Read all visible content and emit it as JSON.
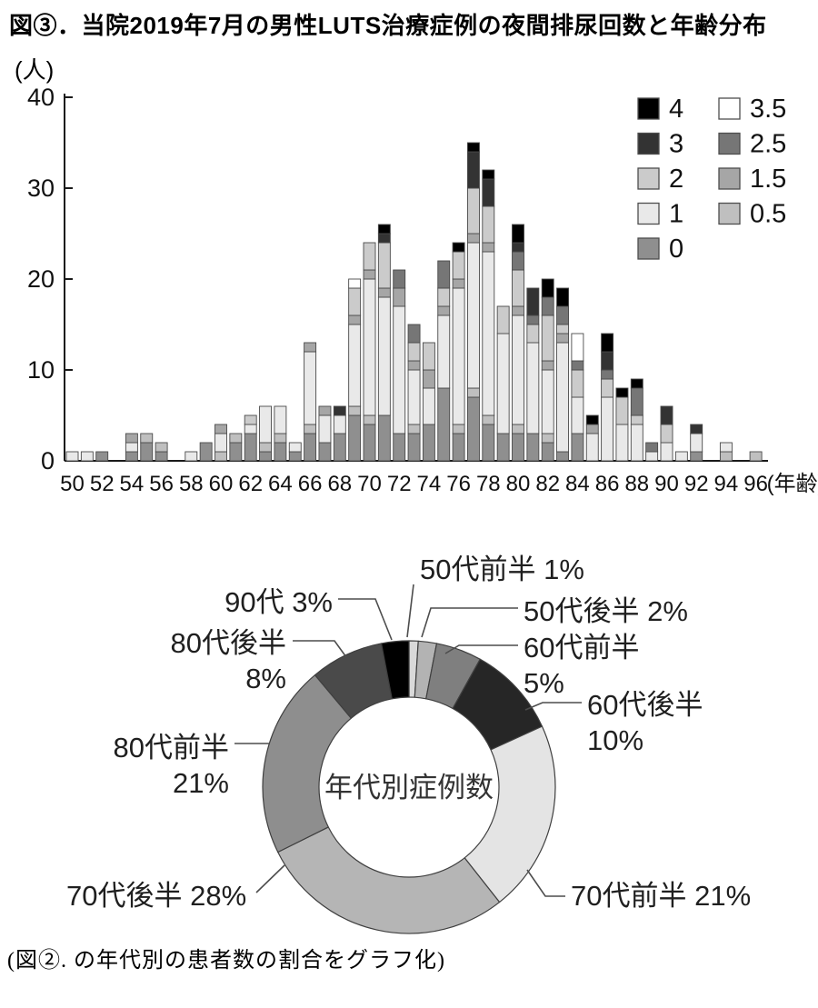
{
  "title": "図③．当院2019年7月の男性LUTS治療症例の夜間排尿回数と年齢分布",
  "caption": "(図②. の年代別の患者数の割合をグラフ化)",
  "chart_data": [
    {
      "type": "bar",
      "stacked": true,
      "description": "Stacked bar chart: number of male LUTS patients (y, 人) by age (x, 歳) stacked by nightly urination frequency (0–4 in 0.5 steps)",
      "y_axis_unit": "(人)",
      "x_axis_label_suffix": "(年齢)",
      "ylim": [
        0,
        40
      ],
      "y_tick_labels": [
        "0",
        "10",
        "20",
        "30",
        "40"
      ],
      "x_tick_labels": [
        "50",
        "52",
        "54",
        "56",
        "58",
        "60",
        "62",
        "64",
        "66",
        "68",
        "70",
        "72",
        "74",
        "76",
        "78",
        "80",
        "82",
        "84",
        "86",
        "88",
        "90",
        "92",
        "94",
        "96"
      ],
      "series_order": [
        "0",
        "0.5",
        "1",
        "1.5",
        "2",
        "2.5",
        "3",
        "3.5",
        "4"
      ],
      "series_colors": {
        "0": "#8f8f8f",
        "0.5": "#bfbfbf",
        "1": "#e9e9e9",
        "1.5": "#a6a6a6",
        "2": "#cbcbcb",
        "2.5": "#767676",
        "3": "#333333",
        "3.5": "#ffffff",
        "4": "#000000"
      },
      "legend": {
        "left_column": [
          {
            "label": "4",
            "color": "#000000"
          },
          {
            "label": "3",
            "color": "#333333"
          },
          {
            "label": "2",
            "color": "#cbcbcb"
          },
          {
            "label": "1",
            "color": "#e9e9e9"
          },
          {
            "label": "0",
            "color": "#8f8f8f"
          }
        ],
        "right_column": [
          {
            "label": "3.5",
            "color": "#ffffff"
          },
          {
            "label": "2.5",
            "color": "#767676"
          },
          {
            "label": "1.5",
            "color": "#a6a6a6"
          },
          {
            "label": "0.5",
            "color": "#bfbfbf"
          }
        ]
      },
      "bars": [
        {
          "age": 50,
          "seg": {
            "1": 1
          }
        },
        {
          "age": 51,
          "seg": {
            "1": 1
          }
        },
        {
          "age": 52,
          "seg": {
            "0": 1
          }
        },
        {
          "age": 54,
          "seg": {
            "0": 1,
            "1": 1,
            "1.5": 1
          }
        },
        {
          "age": 55,
          "seg": {
            "0": 2,
            "0.5": 1
          }
        },
        {
          "age": 56,
          "seg": {
            "0": 1,
            "0.5": 1
          }
        },
        {
          "age": 58,
          "seg": {
            "1": 1
          }
        },
        {
          "age": 59,
          "seg": {
            "0": 2
          }
        },
        {
          "age": 60,
          "seg": {
            "0.5": 1,
            "1": 2,
            "1.5": 1
          }
        },
        {
          "age": 61,
          "seg": {
            "0": 2,
            "0.5": 1
          }
        },
        {
          "age": 62,
          "seg": {
            "0": 3,
            "1": 1,
            "2": 1
          }
        },
        {
          "age": 63,
          "seg": {
            "0": 1,
            "0.5": 1,
            "1": 4
          }
        },
        {
          "age": 64,
          "seg": {
            "0": 2,
            "0.5": 1,
            "1": 3
          }
        },
        {
          "age": 65,
          "seg": {
            "0": 1,
            "1": 1
          }
        },
        {
          "age": 66,
          "seg": {
            "0": 3,
            "0.5": 1,
            "1": 8,
            "1.5": 1
          }
        },
        {
          "age": 67,
          "seg": {
            "0": 2,
            "1": 3,
            "1.5": 1
          }
        },
        {
          "age": 68,
          "seg": {
            "0": 3,
            "1": 2,
            "3": 1
          }
        },
        {
          "age": 69,
          "seg": {
            "0": 5,
            "0.5": 1,
            "1": 9,
            "1.5": 1,
            "2": 3,
            "3.5": 1
          }
        },
        {
          "age": 70,
          "seg": {
            "0": 4,
            "0.5": 1,
            "1": 15,
            "1.5": 1,
            "2": 3
          }
        },
        {
          "age": 71,
          "seg": {
            "0": 5,
            "1": 13,
            "1.5": 1,
            "2": 5,
            "3": 1,
            "4": 1
          }
        },
        {
          "age": 72,
          "seg": {
            "0": 3,
            "1": 14,
            "1.5": 2,
            "2.5": 2
          }
        },
        {
          "age": 73,
          "seg": {
            "0": 3,
            "0.5": 1,
            "1": 6,
            "1.5": 1,
            "2": 2,
            "2.5": 2
          }
        },
        {
          "age": 74,
          "seg": {
            "0": 4,
            "1": 4,
            "1.5": 2,
            "2": 3
          }
        },
        {
          "age": 75,
          "seg": {
            "0": 8,
            "1": 8,
            "1.5": 1,
            "2": 2,
            "2.5": 3
          }
        },
        {
          "age": 76,
          "seg": {
            "0": 3,
            "0.5": 1,
            "1": 15,
            "1.5": 1,
            "2": 3,
            "4": 1
          }
        },
        {
          "age": 77,
          "seg": {
            "0": 7,
            "0.5": 1,
            "1": 16,
            "1.5": 1,
            "2": 5,
            "3": 4,
            "4": 1
          }
        },
        {
          "age": 78,
          "seg": {
            "0": 4,
            "0.5": 1,
            "1": 18,
            "1.5": 1,
            "2": 4,
            "3": 3,
            "4": 1
          }
        },
        {
          "age": 79,
          "seg": {
            "0": 3,
            "1": 11,
            "2": 3
          }
        },
        {
          "age": 80,
          "seg": {
            "0": 3,
            "0.5": 1,
            "1": 12,
            "1.5": 1,
            "2": 4,
            "2.5": 2,
            "3": 1,
            "4": 2
          }
        },
        {
          "age": 81,
          "seg": {
            "0": 3,
            "1": 10,
            "2": 2,
            "2.5": 1,
            "3": 3
          }
        },
        {
          "age": 82,
          "seg": {
            "0": 2,
            "0.5": 1,
            "1": 7,
            "1.5": 1,
            "2": 5,
            "2.5": 2,
            "4": 2
          }
        },
        {
          "age": 83,
          "seg": {
            "0": 1,
            "1": 12,
            "1.5": 1,
            "2": 1,
            "2.5": 2,
            "4": 2
          }
        },
        {
          "age": 84,
          "seg": {
            "0": 3,
            "1": 4,
            "2": 3,
            "2.5": 1,
            "3.5": 3
          }
        },
        {
          "age": 85,
          "seg": {
            "1": 3,
            "1.5": 1,
            "4": 1
          }
        },
        {
          "age": 86,
          "seg": {
            "1": 7,
            "2": 2,
            "2.5": 1,
            "3": 2,
            "4": 2
          }
        },
        {
          "age": 87,
          "seg": {
            "1": 4,
            "2": 3,
            "4": 1
          }
        },
        {
          "age": 88,
          "seg": {
            "1": 4,
            "2": 1,
            "2.5": 3,
            "4": 1
          }
        },
        {
          "age": 89,
          "seg": {
            "1": 1,
            "2.5": 1
          }
        },
        {
          "age": 90,
          "seg": {
            "1": 2,
            "2": 2,
            "3": 2
          }
        },
        {
          "age": 91,
          "seg": {
            "1": 1
          }
        },
        {
          "age": 92,
          "seg": {
            "0": 1,
            "1": 2,
            "3": 1
          }
        },
        {
          "age": 94,
          "seg": {
            "0.5": 1,
            "1": 1
          }
        },
        {
          "age": 96,
          "seg": {
            "0.5": 1
          }
        }
      ]
    },
    {
      "type": "pie",
      "subtype": "donut",
      "center_label": "年代別症例数",
      "legend_position": "callouts",
      "slices": [
        {
          "label": "50代前半",
          "pct": 1,
          "pct_text": "1%",
          "color": "#d9d9d9"
        },
        {
          "label": "50代後半",
          "pct": 2,
          "pct_text": "2%",
          "color": "#b3b3b3"
        },
        {
          "label": "60代前半",
          "pct": 5,
          "pct_text": "5%",
          "color": "#7f7f7f"
        },
        {
          "label": "60代後半",
          "pct": 10,
          "pct_text": "10%",
          "color": "#262626"
        },
        {
          "label": "70代前半",
          "pct": 21,
          "pct_text": "21%",
          "color": "#e4e4e4"
        },
        {
          "label": "70代後半",
          "pct": 28,
          "pct_text": "28%",
          "color": "#b5b5b5"
        },
        {
          "label": "80代前半",
          "pct": 21,
          "pct_text": "21%",
          "color": "#8e8e8e"
        },
        {
          "label": "80代後半",
          "pct": 8,
          "pct_text": "8%",
          "color": "#4a4a4a"
        },
        {
          "label": "90代",
          "pct": 3,
          "pct_text": "3%",
          "color": "#000000"
        }
      ]
    }
  ]
}
